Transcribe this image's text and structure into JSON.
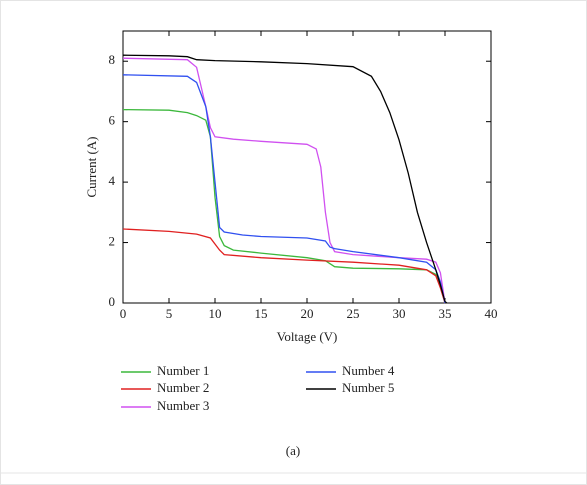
{
  "chart_data": {
    "type": "line",
    "x_label": "Voltage (V)",
    "y_label": "Current (A)",
    "caption": "(a)",
    "xlim": [
      0,
      40
    ],
    "xticks": [
      0,
      5,
      10,
      15,
      20,
      25,
      30,
      35,
      40
    ],
    "ylim": [
      0,
      9
    ],
    "yticks": [
      0,
      2,
      4,
      6,
      8
    ],
    "series": [
      {
        "name": "Number 1",
        "color": "#3cb83c",
        "x": [
          0,
          5,
          7,
          8,
          9,
          9.5,
          10,
          10.5,
          11,
          12,
          15,
          20,
          22,
          23,
          25,
          30,
          33,
          34,
          34.5,
          35
        ],
        "values": [
          6.4,
          6.38,
          6.3,
          6.2,
          6.05,
          5.5,
          3.5,
          2.2,
          1.9,
          1.75,
          1.65,
          1.5,
          1.4,
          1.2,
          1.15,
          1.13,
          1.1,
          0.95,
          0.6,
          0
        ]
      },
      {
        "name": "Number 2",
        "color": "#e02020",
        "x": [
          0,
          5,
          8,
          9.5,
          10.5,
          11,
          15,
          20,
          25,
          30,
          33,
          34,
          34.5,
          35
        ],
        "values": [
          2.45,
          2.37,
          2.28,
          2.15,
          1.75,
          1.6,
          1.5,
          1.42,
          1.35,
          1.25,
          1.1,
          0.9,
          0.5,
          0
        ]
      },
      {
        "name": "Number 3",
        "color": "#d050f0",
        "x": [
          0,
          7,
          8,
          9,
          9.5,
          10,
          12,
          15,
          20,
          21,
          21.5,
          22,
          22.5,
          23,
          25,
          30,
          33,
          34,
          34.5,
          35
        ],
        "values": [
          8.1,
          8.05,
          7.8,
          6.5,
          5.8,
          5.5,
          5.42,
          5.35,
          5.25,
          5.1,
          4.5,
          3.0,
          2.0,
          1.7,
          1.6,
          1.5,
          1.45,
          1.35,
          1.0,
          0
        ]
      },
      {
        "name": "Number 4",
        "color": "#3050f0",
        "x": [
          0,
          7,
          8,
          9,
          9.5,
          10,
          10.5,
          11,
          13,
          15,
          20,
          22,
          22.5,
          23,
          25,
          30,
          33,
          34,
          34.5,
          35
        ],
        "values": [
          7.55,
          7.5,
          7.3,
          6.5,
          5.5,
          4.0,
          2.5,
          2.35,
          2.25,
          2.2,
          2.15,
          2.05,
          1.85,
          1.8,
          1.7,
          1.5,
          1.35,
          1.1,
          0.7,
          0
        ]
      },
      {
        "name": "Number 5",
        "color": "#000000",
        "x": [
          0,
          5,
          7,
          8,
          10,
          15,
          20,
          25,
          27,
          28,
          29,
          30,
          31,
          32,
          33,
          34,
          34.5,
          35,
          35.2
        ],
        "values": [
          8.2,
          8.18,
          8.15,
          8.05,
          8.02,
          7.98,
          7.92,
          7.82,
          7.5,
          7.0,
          6.3,
          5.4,
          4.3,
          3.0,
          2.0,
          1.1,
          0.6,
          0.05,
          0
        ]
      }
    ]
  }
}
